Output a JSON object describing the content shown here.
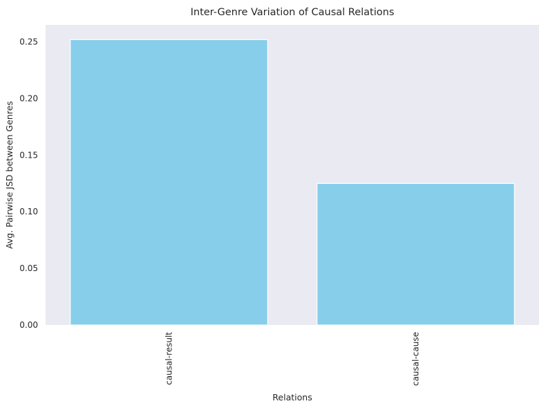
{
  "chart_data": {
    "type": "bar",
    "title": "Inter-Genre Variation of Causal Relations",
    "xlabel": "Relations",
    "ylabel": "Avg. Pairwise JSD between Genres",
    "categories": [
      "causal-result",
      "causal-cause"
    ],
    "values": [
      0.252,
      0.125
    ],
    "ylim": [
      0,
      0.265
    ],
    "yticks": [
      0.0,
      0.05,
      0.1,
      0.15,
      0.2,
      0.25
    ],
    "ytick_labels": [
      "0.00",
      "0.05",
      "0.10",
      "0.15",
      "0.20",
      "0.25"
    ],
    "grid": false,
    "legend": "none",
    "colors": {
      "bar": "#87CEEB",
      "bar_edge": "#ffffff",
      "plot_background": "#EAEAF2",
      "text": "#262626"
    }
  }
}
